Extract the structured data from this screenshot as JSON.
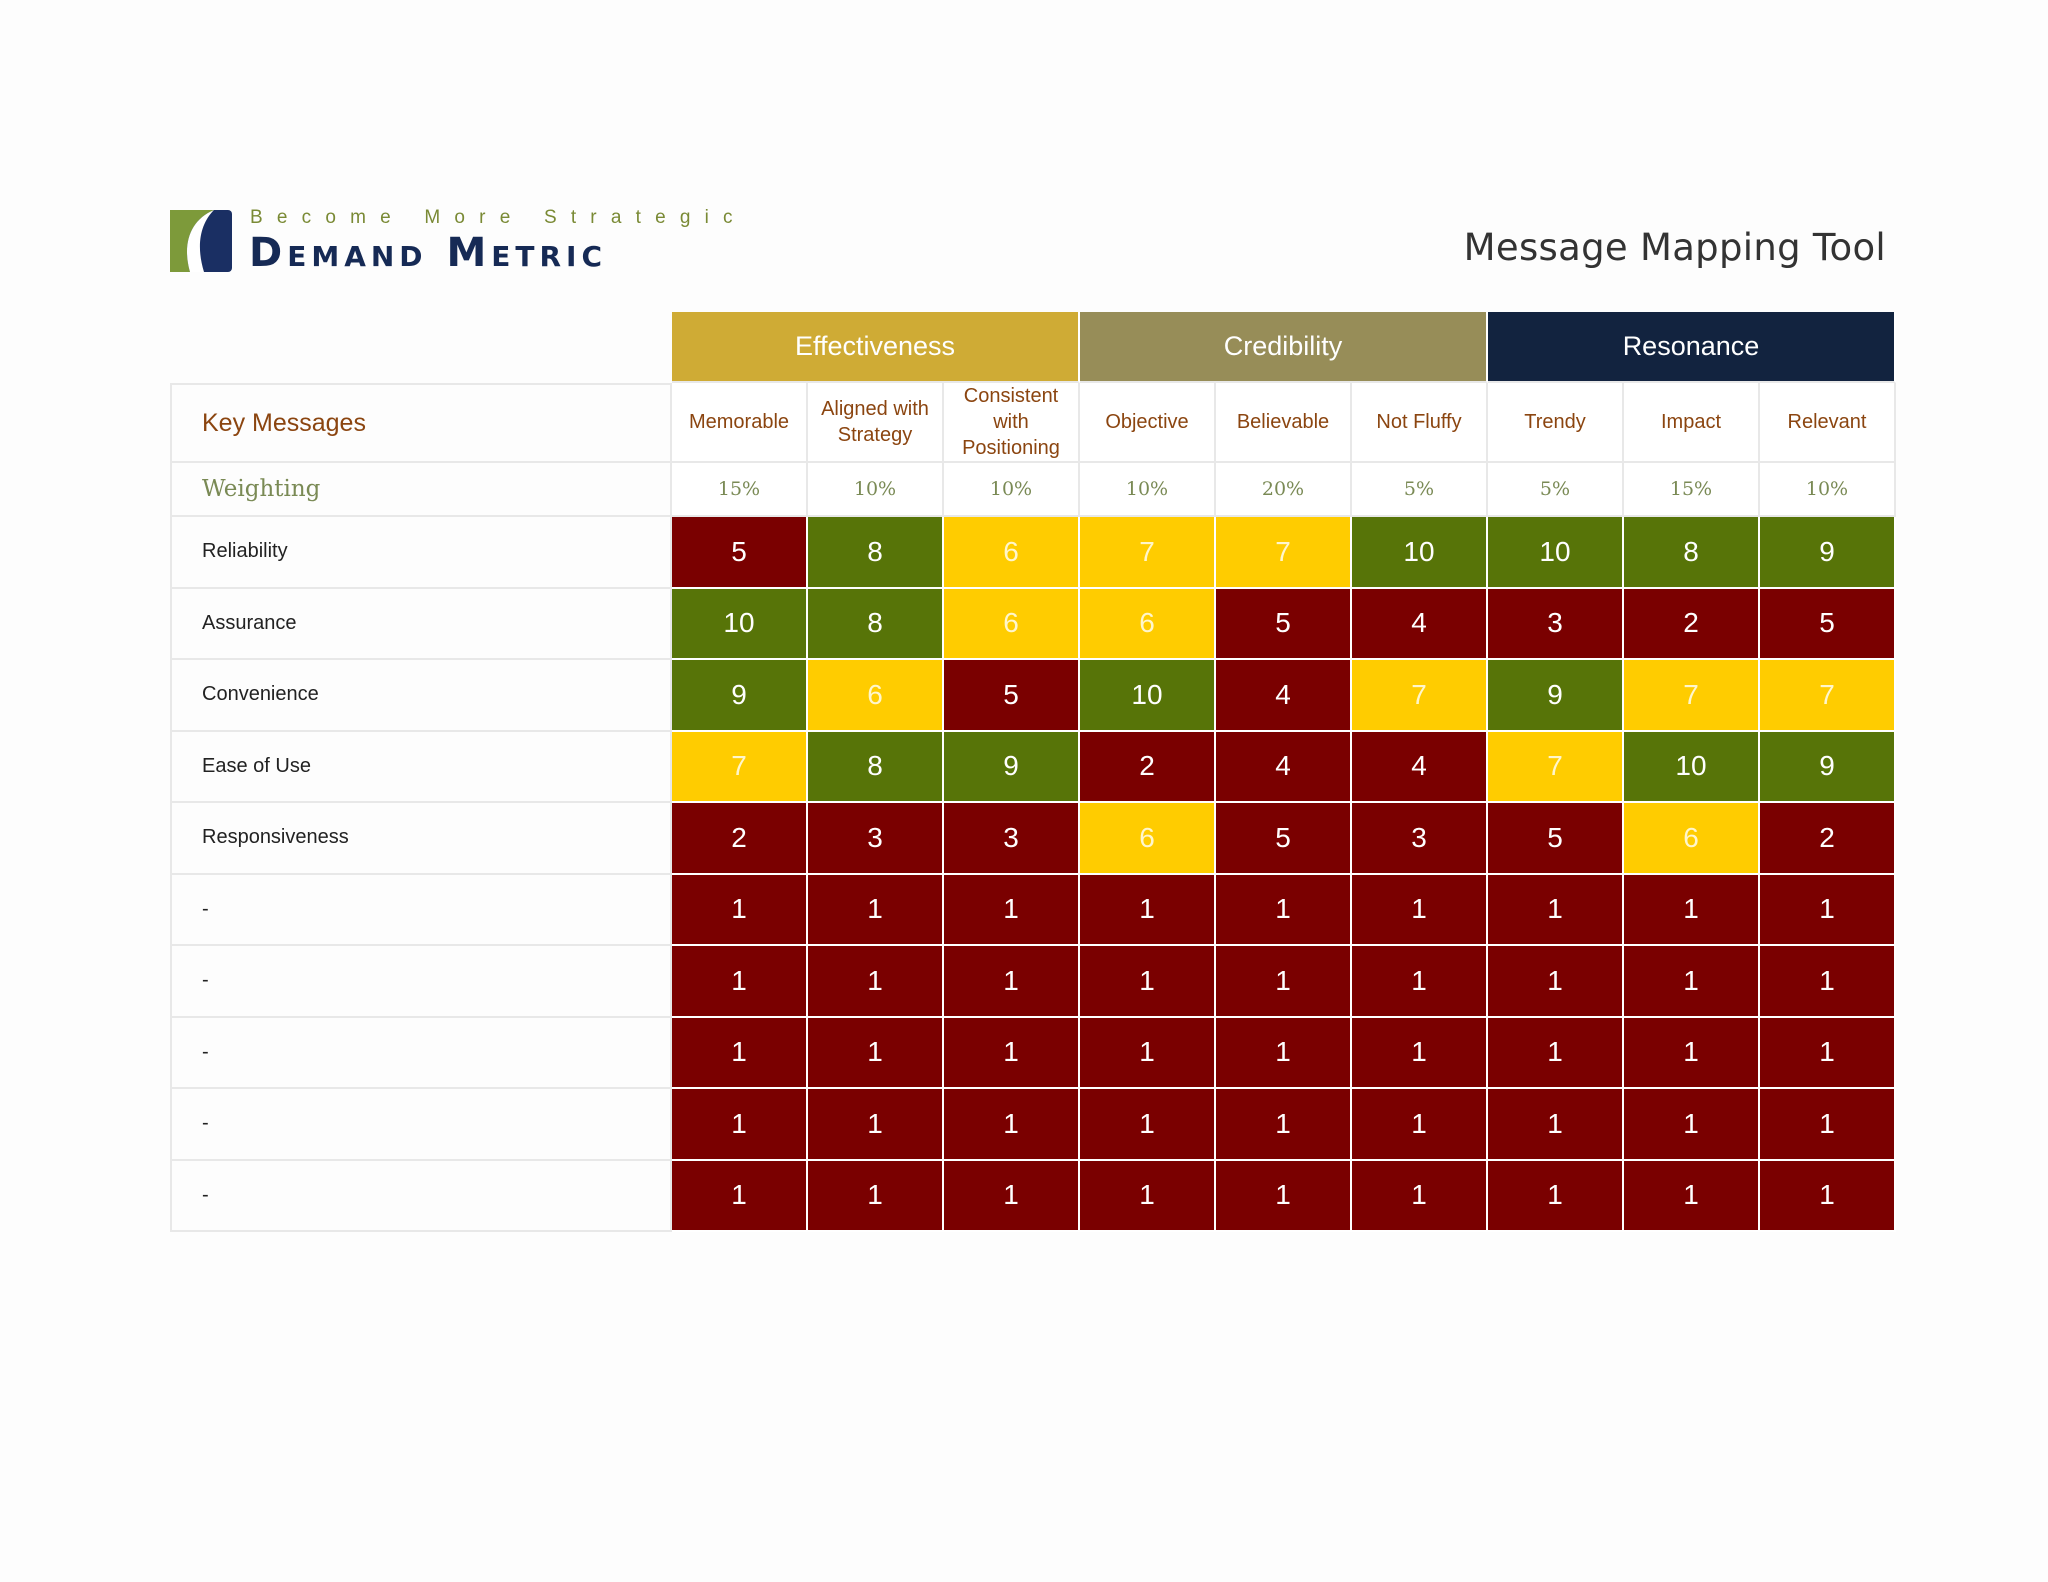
{
  "brand": {
    "tagline": "Become More Strategic",
    "name": "Demand Metric"
  },
  "title": "Message Mapping Tool",
  "table": {
    "key_messages_label": "Key Messages",
    "weighting_label": "Weighting",
    "groups": [
      {
        "label": "Effectiveness",
        "color": "#cfab35",
        "criteria": [
          "Memorable",
          "Aligned with Strategy",
          "Consistent with Positioning"
        ]
      },
      {
        "label": "Credibility",
        "color": "#978d58",
        "criteria": [
          "Objective",
          "Believable",
          "Not Fluffy"
        ]
      },
      {
        "label": "Resonance",
        "color": "#12233f",
        "criteria": [
          "Trendy",
          "Impact",
          "Relevant"
        ]
      }
    ],
    "criteria": [
      "Memorable",
      "Aligned with Strategy",
      "Consistent with Positioning",
      "Objective",
      "Believable",
      "Not Fluffy",
      "Trendy",
      "Impact",
      "Relevant"
    ],
    "weights": [
      "15%",
      "10%",
      "10%",
      "10%",
      "20%",
      "5%",
      "5%",
      "15%",
      "10%"
    ],
    "rows": [
      {
        "label": "Reliability",
        "scores": [
          5,
          8,
          6,
          7,
          7,
          10,
          10,
          8,
          9
        ]
      },
      {
        "label": "Assurance",
        "scores": [
          10,
          8,
          6,
          6,
          5,
          4,
          3,
          2,
          5
        ]
      },
      {
        "label": "Convenience",
        "scores": [
          9,
          6,
          5,
          10,
          4,
          7,
          9,
          7,
          7
        ]
      },
      {
        "label": "Ease of Use",
        "scores": [
          7,
          8,
          9,
          2,
          4,
          4,
          7,
          10,
          9
        ]
      },
      {
        "label": "Responsiveness",
        "scores": [
          2,
          3,
          3,
          6,
          5,
          3,
          5,
          6,
          2
        ]
      },
      {
        "label": "-",
        "scores": [
          1,
          1,
          1,
          1,
          1,
          1,
          1,
          1,
          1
        ]
      },
      {
        "label": "-",
        "scores": [
          1,
          1,
          1,
          1,
          1,
          1,
          1,
          1,
          1
        ]
      },
      {
        "label": "-",
        "scores": [
          1,
          1,
          1,
          1,
          1,
          1,
          1,
          1,
          1
        ]
      },
      {
        "label": "-",
        "scores": [
          1,
          1,
          1,
          1,
          1,
          1,
          1,
          1,
          1
        ]
      },
      {
        "label": "-",
        "scores": [
          1,
          1,
          1,
          1,
          1,
          1,
          1,
          1,
          1
        ]
      }
    ]
  },
  "score_colors": {
    "low": "#7a0000",
    "medium": "#ffcc00",
    "high": "#577408"
  }
}
